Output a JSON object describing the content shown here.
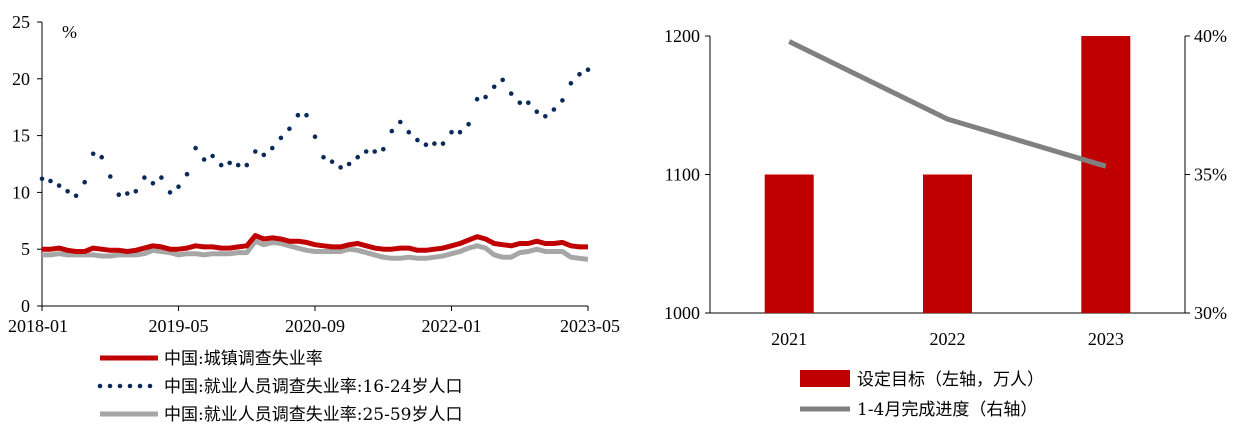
{
  "chart_data": [
    {
      "type": "line",
      "unit_label": "%",
      "ylim": [
        0,
        25
      ],
      "y_ticks": [
        "0",
        "5",
        "10",
        "15",
        "20",
        "25"
      ],
      "x_ticks": [
        "2018-01",
        "2019-05",
        "2020-09",
        "2022-01",
        "2023-05"
      ],
      "x_range": [
        "2018-01",
        "2023-05"
      ],
      "legend_position": "bottom",
      "series": [
        {
          "name": "中国:城镇调查失业率",
          "color": "#c00000",
          "style": "solid-thick",
          "x": [
            "2018-01",
            "2018-02",
            "2018-03",
            "2018-04",
            "2018-05",
            "2018-06",
            "2018-07",
            "2018-08",
            "2018-09",
            "2018-10",
            "2018-11",
            "2018-12",
            "2019-01",
            "2019-02",
            "2019-03",
            "2019-04",
            "2019-05",
            "2019-06",
            "2019-07",
            "2019-08",
            "2019-09",
            "2019-10",
            "2019-11",
            "2019-12",
            "2020-01",
            "2020-02",
            "2020-03",
            "2020-04",
            "2020-05",
            "2020-06",
            "2020-07",
            "2020-08",
            "2020-09",
            "2020-10",
            "2020-11",
            "2020-12",
            "2021-01",
            "2021-02",
            "2021-03",
            "2021-04",
            "2021-05",
            "2021-06",
            "2021-07",
            "2021-08",
            "2021-09",
            "2021-10",
            "2021-11",
            "2021-12",
            "2022-01",
            "2022-02",
            "2022-03",
            "2022-04",
            "2022-05",
            "2022-06",
            "2022-07",
            "2022-08",
            "2022-09",
            "2022-10",
            "2022-11",
            "2022-12",
            "2023-01",
            "2023-02",
            "2023-03",
            "2023-04",
            "2023-05"
          ],
          "values": [
            5.0,
            5.0,
            5.1,
            4.9,
            4.8,
            4.8,
            5.1,
            5.0,
            4.9,
            4.9,
            4.8,
            4.9,
            5.1,
            5.3,
            5.2,
            5.0,
            5.0,
            5.1,
            5.3,
            5.2,
            5.2,
            5.1,
            5.1,
            5.2,
            5.3,
            6.2,
            5.9,
            6.0,
            5.9,
            5.7,
            5.7,
            5.6,
            5.4,
            5.3,
            5.2,
            5.2,
            5.4,
            5.5,
            5.3,
            5.1,
            5.0,
            5.0,
            5.1,
            5.1,
            4.9,
            4.9,
            5.0,
            5.1,
            5.3,
            5.5,
            5.8,
            6.1,
            5.9,
            5.5,
            5.4,
            5.3,
            5.5,
            5.5,
            5.7,
            5.5,
            5.5,
            5.6,
            5.3,
            5.2,
            5.2
          ]
        },
        {
          "name": "中国:就业人员调查失业率:16-24岁人口",
          "color": "#0b2a5a",
          "style": "dotted",
          "x": [
            "2018-01",
            "2018-02",
            "2018-03",
            "2018-04",
            "2018-05",
            "2018-06",
            "2018-07",
            "2018-08",
            "2018-09",
            "2018-10",
            "2018-11",
            "2018-12",
            "2019-01",
            "2019-02",
            "2019-03",
            "2019-04",
            "2019-05",
            "2019-06",
            "2019-07",
            "2019-08",
            "2019-09",
            "2019-10",
            "2019-11",
            "2019-12",
            "2020-01",
            "2020-02",
            "2020-03",
            "2020-04",
            "2020-05",
            "2020-06",
            "2020-07",
            "2020-08",
            "2020-09",
            "2020-10",
            "2020-11",
            "2020-12",
            "2021-01",
            "2021-02",
            "2021-03",
            "2021-04",
            "2021-05",
            "2021-06",
            "2021-07",
            "2021-08",
            "2021-09",
            "2021-10",
            "2021-11",
            "2021-12",
            "2022-01",
            "2022-02",
            "2022-03",
            "2022-04",
            "2022-05",
            "2022-06",
            "2022-07",
            "2022-08",
            "2022-09",
            "2022-10",
            "2022-11",
            "2022-12",
            "2023-01",
            "2023-02",
            "2023-03",
            "2023-04",
            "2023-05"
          ],
          "values": [
            11.2,
            11.0,
            10.6,
            10.1,
            9.7,
            10.9,
            13.4,
            13.1,
            11.4,
            9.8,
            9.9,
            10.1,
            11.3,
            10.8,
            11.3,
            10.0,
            10.5,
            11.6,
            13.9,
            12.9,
            13.2,
            12.4,
            12.6,
            12.4,
            12.4,
            13.6,
            13.3,
            13.9,
            14.8,
            15.6,
            16.8,
            16.8,
            14.9,
            13.1,
            12.7,
            12.2,
            12.5,
            13.1,
            13.6,
            13.6,
            13.8,
            15.4,
            16.2,
            15.3,
            14.6,
            14.2,
            14.3,
            14.3,
            15.3,
            15.3,
            16.0,
            18.2,
            18.4,
            19.3,
            19.9,
            18.7,
            17.9,
            17.9,
            17.1,
            16.7,
            17.3,
            18.1,
            19.6,
            20.4,
            20.8
          ]
        },
        {
          "name": "中国:就业人员调查失业率:25-59岁人口",
          "color": "#a6a6a6",
          "style": "solid-thick",
          "x": [
            "2018-01",
            "2018-02",
            "2018-03",
            "2018-04",
            "2018-05",
            "2018-06",
            "2018-07",
            "2018-08",
            "2018-09",
            "2018-10",
            "2018-11",
            "2018-12",
            "2019-01",
            "2019-02",
            "2019-03",
            "2019-04",
            "2019-05",
            "2019-06",
            "2019-07",
            "2019-08",
            "2019-09",
            "2019-10",
            "2019-11",
            "2019-12",
            "2020-01",
            "2020-02",
            "2020-03",
            "2020-04",
            "2020-05",
            "2020-06",
            "2020-07",
            "2020-08",
            "2020-09",
            "2020-10",
            "2020-11",
            "2020-12",
            "2021-01",
            "2021-02",
            "2021-03",
            "2021-04",
            "2021-05",
            "2021-06",
            "2021-07",
            "2021-08",
            "2021-09",
            "2021-10",
            "2021-11",
            "2021-12",
            "2022-01",
            "2022-02",
            "2022-03",
            "2022-04",
            "2022-05",
            "2022-06",
            "2022-07",
            "2022-08",
            "2022-09",
            "2022-10",
            "2022-11",
            "2022-12",
            "2023-01",
            "2023-02",
            "2023-03",
            "2023-04",
            "2023-05"
          ],
          "values": [
            4.5,
            4.5,
            4.6,
            4.5,
            4.5,
            4.5,
            4.5,
            4.4,
            4.4,
            4.5,
            4.5,
            4.5,
            4.6,
            4.9,
            4.8,
            4.7,
            4.5,
            4.6,
            4.6,
            4.5,
            4.6,
            4.6,
            4.6,
            4.7,
            4.7,
            5.7,
            5.4,
            5.6,
            5.5,
            5.3,
            5.1,
            4.9,
            4.8,
            4.8,
            4.8,
            4.8,
            5.0,
            4.9,
            4.7,
            4.5,
            4.3,
            4.2,
            4.2,
            4.3,
            4.2,
            4.2,
            4.3,
            4.4,
            4.6,
            4.8,
            5.1,
            5.3,
            5.1,
            4.5,
            4.3,
            4.3,
            4.7,
            4.8,
            5.0,
            4.8,
            4.8,
            4.8,
            4.3,
            4.2,
            4.1
          ]
        }
      ]
    },
    {
      "type": "bar",
      "categories": [
        "2021",
        "2022",
        "2023"
      ],
      "ylim_left": [
        1000,
        1200
      ],
      "y_ticks_left": [
        "1000",
        "1100",
        "1200"
      ],
      "ylim_right": [
        30,
        40
      ],
      "y_ticks_right": [
        "30%",
        "35%",
        "40%"
      ],
      "legend_position": "bottom",
      "series": [
        {
          "name": "设定目标（左轴，万人）",
          "type": "bar",
          "axis": "left",
          "color": "#c00000",
          "values": [
            1100,
            1100,
            1200
          ]
        },
        {
          "name": "1-4月完成进度（右轴）",
          "type": "line",
          "axis": "right",
          "color": "#808080",
          "values": [
            39.8,
            37.0,
            35.3
          ]
        }
      ]
    }
  ]
}
